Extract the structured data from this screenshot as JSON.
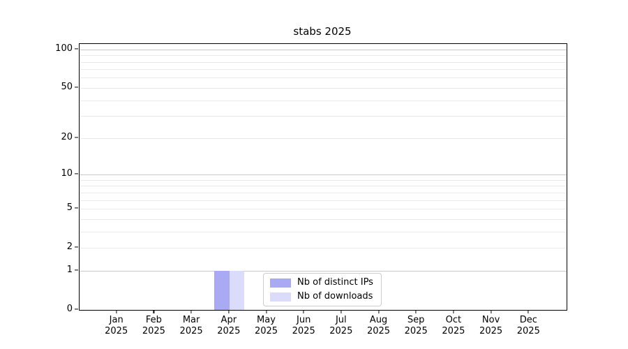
{
  "chart_data": {
    "type": "bar",
    "title": "stabs 2025",
    "categories": [
      "Jan 2025",
      "Feb 2025",
      "Mar 2025",
      "Apr 2025",
      "May 2025",
      "Jun 2025",
      "Jul 2025",
      "Aug 2025",
      "Sep 2025",
      "Oct 2025",
      "Nov 2025",
      "Dec 2025"
    ],
    "series": [
      {
        "name": "Nb of distinct IPs",
        "color": "#a9a9f4",
        "values": [
          0,
          0,
          0,
          1,
          0,
          0,
          0,
          0,
          0,
          0,
          0,
          0
        ]
      },
      {
        "name": "Nb of downloads",
        "color": "#dbdbfb",
        "values": [
          0,
          0,
          0,
          1,
          0,
          0,
          0,
          0,
          0,
          0,
          0,
          0
        ]
      }
    ],
    "xlabel": "",
    "ylabel": "",
    "yscale": "log1p",
    "ylim": [
      0,
      110
    ],
    "yticks": [
      0,
      1,
      2,
      5,
      10,
      20,
      50,
      100
    ],
    "grid": {
      "major_lines": [
        1,
        10,
        100
      ],
      "minor_lines": [
        2,
        3,
        4,
        5,
        6,
        7,
        8,
        9,
        20,
        30,
        40,
        50,
        60,
        70,
        80,
        90
      ],
      "major_color": "#c8c8c8",
      "minor_color": "#eaeaea"
    },
    "legend": {
      "location": "lower center",
      "border_color": "#cccccc"
    }
  }
}
